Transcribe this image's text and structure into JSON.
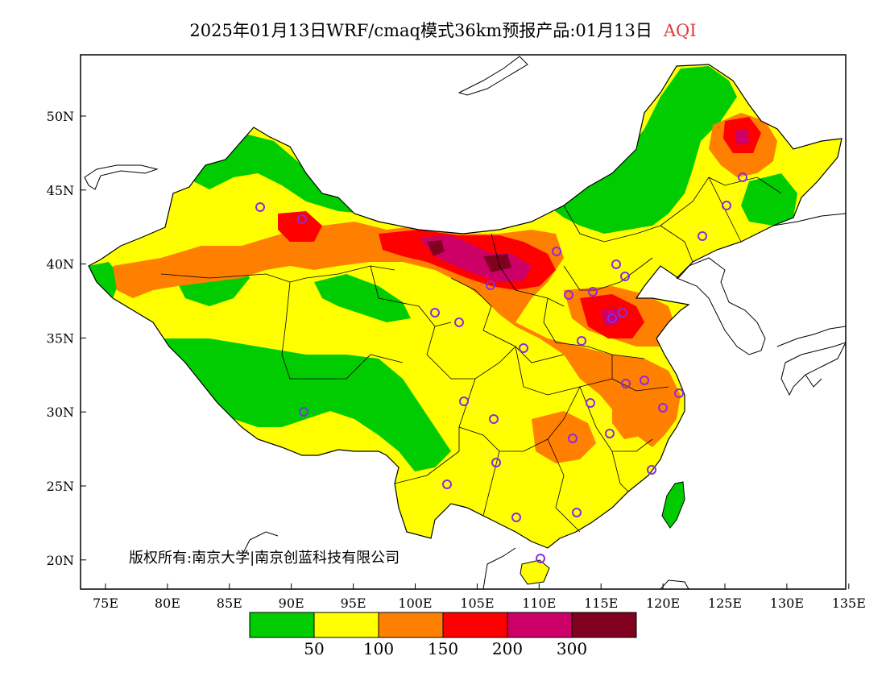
{
  "title": {
    "main": "2025年01月13日WRF/cmaq模式36km预报产品:01月13日",
    "variable": "AQI",
    "variable_color": "#e03c3c"
  },
  "axes": {
    "lon_ticks": [
      "75E",
      "80E",
      "85E",
      "90E",
      "95E",
      "100E",
      "105E",
      "110E",
      "115E",
      "120E",
      "125E",
      "130E",
      "135E"
    ],
    "lat_ticks": [
      "50N",
      "45N",
      "40N",
      "35N",
      "30N",
      "25N",
      "20N"
    ]
  },
  "copyright": "版权所有:南京大学|南京创蓝科技有限公司",
  "colorbar": {
    "colors": [
      "#00cc00",
      "#ffff00",
      "#ff8000",
      "#ff0000",
      "#cc0066",
      "#800020"
    ],
    "labels": [
      "50",
      "100",
      "150",
      "200",
      "300"
    ]
  },
  "stations": {
    "marker_color": "#8a2be2",
    "marker_icon": "circle-marker-icon"
  }
}
